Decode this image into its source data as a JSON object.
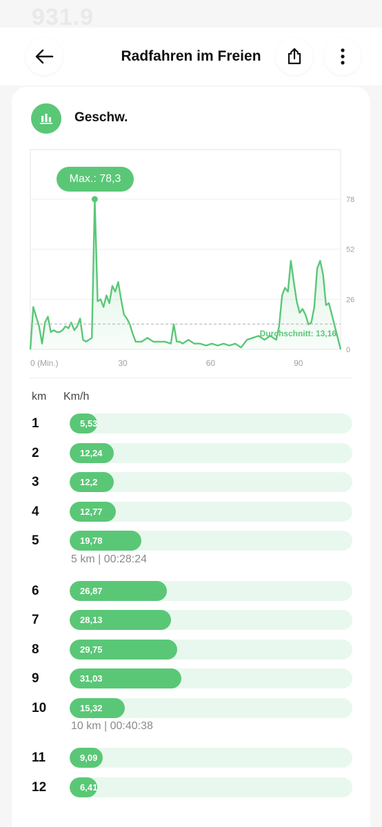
{
  "ghost_value": "931.9",
  "header": {
    "title": "Radfahren im Freien",
    "back_icon": "arrow-left-icon",
    "share_icon": "share-icon",
    "more_icon": "more-vertical-icon"
  },
  "section": {
    "icon": "bar-chart-icon",
    "label": "Geschw.",
    "accent_color": "#5ac777"
  },
  "chart_data": {
    "type": "area",
    "x_unit": "Min.",
    "x_ticks": [
      "0 (Min.)",
      "30",
      "60",
      "90"
    ],
    "y_ticks": [
      "0",
      "26",
      "52",
      "78"
    ],
    "xlim": [
      0,
      106
    ],
    "ylim": [
      0,
      78
    ],
    "max_label": "Max.: 78,3",
    "avg_label": "Durchschnitt: 13,16",
    "avg_value": 13.16,
    "max_value": 78.3,
    "grid": true,
    "series": [
      {
        "x": [
          0,
          1,
          3,
          4,
          5,
          6,
          7,
          8,
          9,
          10,
          11,
          12,
          13,
          14,
          15,
          16,
          17,
          18,
          19,
          20,
          21,
          22,
          23,
          24,
          25,
          26,
          27,
          28,
          29,
          30,
          31,
          32,
          33,
          34,
          35,
          36,
          37,
          38,
          39,
          40,
          42,
          44,
          46,
          48,
          49,
          50,
          51,
          52,
          54,
          56,
          58,
          60,
          62,
          64,
          66,
          68,
          70,
          72,
          74,
          76,
          78,
          80,
          82,
          84,
          85,
          86,
          87,
          88,
          89,
          90,
          91,
          92,
          93,
          94,
          95,
          96,
          97,
          98,
          99,
          100,
          101,
          102,
          103,
          104,
          105,
          106
        ],
        "y": [
          0,
          22,
          12,
          3,
          14,
          17,
          9,
          10,
          9,
          9,
          10,
          12,
          11,
          14,
          10,
          12,
          16,
          5,
          4,
          5,
          6,
          78,
          25,
          26,
          22,
          28,
          24,
          33,
          30,
          35,
          26,
          18,
          16,
          13,
          8,
          4,
          4,
          4,
          5,
          6,
          4,
          4,
          4,
          3,
          13,
          4,
          4,
          3,
          5,
          3,
          3,
          2,
          3,
          2,
          3,
          2,
          3,
          1,
          5,
          6,
          7,
          5,
          7,
          5,
          12,
          28,
          32,
          30,
          46,
          35,
          25,
          19,
          21,
          18,
          13,
          14,
          22,
          42,
          46,
          39,
          23,
          24,
          18,
          12,
          6,
          0
        ]
      }
    ]
  },
  "table": {
    "col_km": "km",
    "col_speed": "Km/h",
    "scale_max": 78.3,
    "rows": [
      {
        "km": "1",
        "value": "5,53",
        "num": 5.53
      },
      {
        "km": "2",
        "value": "12,24",
        "num": 12.24
      },
      {
        "km": "3",
        "value": "12,2",
        "num": 12.2
      },
      {
        "km": "4",
        "value": "12,77",
        "num": 12.77
      },
      {
        "km": "5",
        "value": "19,78",
        "num": 19.78
      },
      {
        "km": "6",
        "value": "26,87",
        "num": 26.87
      },
      {
        "km": "7",
        "value": "28,13",
        "num": 28.13
      },
      {
        "km": "8",
        "value": "29,75",
        "num": 29.75
      },
      {
        "km": "9",
        "value": "31,03",
        "num": 31.03
      },
      {
        "km": "10",
        "value": "15,32",
        "num": 15.32
      },
      {
        "km": "11",
        "value": "9,09",
        "num": 9.09
      },
      {
        "km": "12",
        "value": "6,41",
        "num": 6.41
      }
    ],
    "splits": [
      {
        "after_km": "5",
        "text": "5 km | 00:28:24"
      },
      {
        "after_km": "10",
        "text": "10 km | 00:40:38"
      }
    ]
  }
}
